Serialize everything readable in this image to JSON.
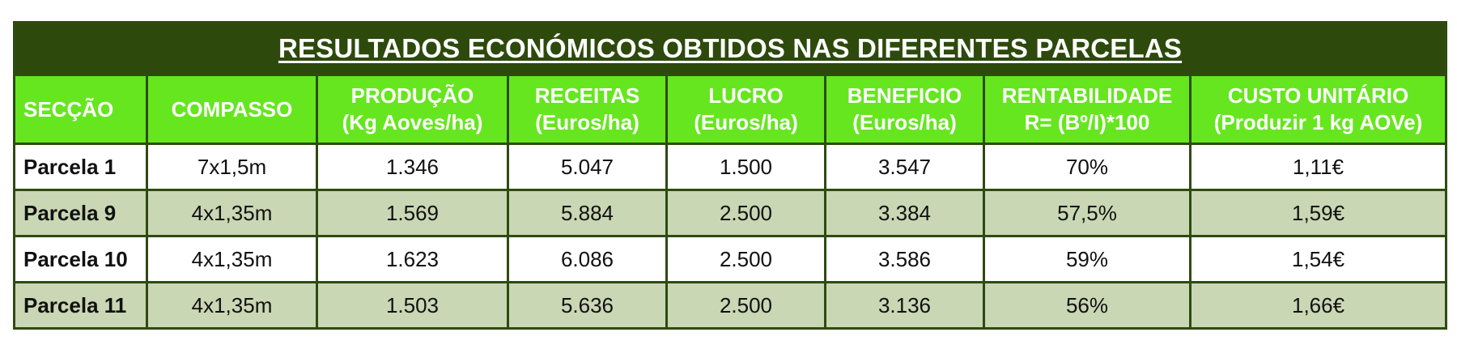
{
  "title": "RESULTADOS  ECONÓMICOS OBTIDOS NAS DIFERENTES PARCELAS",
  "colors": {
    "title_bg": "#2d4a0c",
    "header_bg": "#66e61f",
    "row_alt_bg": "#c9d7b4",
    "border": "#2f4a12"
  },
  "headers": [
    {
      "line1": "SECÇÃO",
      "line2": ""
    },
    {
      "line1": "COMPASSO",
      "line2": ""
    },
    {
      "line1": "PRODUÇÃO",
      "line2": "(Kg Aoves/ha)"
    },
    {
      "line1": "RECEITAS",
      "line2": "(Euros/ha)"
    },
    {
      "line1": "LUCRO",
      "line2": "(Euros/ha)"
    },
    {
      "line1": "BENEFICIO",
      "line2": "(Euros/ha)"
    },
    {
      "line1": "RENTABILIDADE",
      "line2": "R= (Bº/I)*100"
    },
    {
      "line1": "CUSTO UNITÁRIO",
      "line2": "(Produzir 1 kg AOVe)"
    }
  ],
  "rows": [
    [
      "Parcela 1",
      "7x1,5m",
      "1.346",
      "5.047",
      "1.500",
      "3.547",
      "70%",
      "1,11€"
    ],
    [
      "Parcela 9",
      "4x1,35m",
      "1.569",
      "5.884",
      "2.500",
      "3.384",
      "57,5%",
      "1,59€"
    ],
    [
      "Parcela 10",
      "4x1,35m",
      "1.623",
      "6.086",
      "2.500",
      "3.586",
      "59%",
      "1,54€"
    ],
    [
      "Parcela 11",
      "4x1,35m",
      "1.503",
      "5.636",
      "2.500",
      "3.136",
      "56%",
      "1,66€"
    ]
  ]
}
